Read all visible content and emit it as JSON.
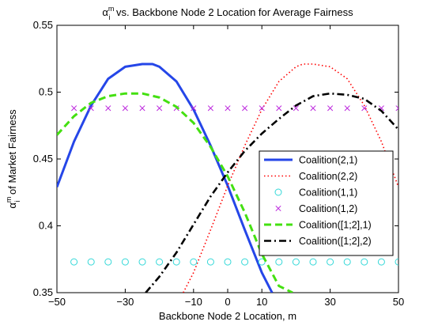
{
  "chart_data": {
    "type": "line",
    "title": {
      "symbol": "α",
      "sup": "m",
      "sub": "i",
      "text": " vs. Backbone Node 2 Location for Average Fairness"
    },
    "xlabel": "Backbone Node 2 Location, m",
    "ylabel": {
      "symbol": "α",
      "sup": "m",
      "sub": "i",
      "text": " of Market Fairness"
    },
    "xlim": [
      -50,
      50
    ],
    "ylim": [
      0.35,
      0.55
    ],
    "xticks": [
      -50,
      -30,
      -10,
      0,
      10,
      30,
      50
    ],
    "xtick_labels": [
      "−50",
      "−30",
      "−10",
      "0",
      "10",
      "30",
      "50"
    ],
    "yticks": [
      0.35,
      0.4,
      0.45,
      0.5,
      0.55
    ],
    "ytick_labels": [
      "0.35",
      "0.4",
      "0.45",
      "0.5",
      "0.55"
    ],
    "grid": false,
    "legend_position": "right-center",
    "series": [
      {
        "name": "Coalition(2,1)",
        "color": "#2546e8",
        "style": "solid",
        "marker": "none",
        "x": [
          -50,
          -45,
          -40,
          -35,
          -30,
          -25,
          -22,
          -20,
          -15,
          -10,
          -5,
          0,
          5,
          10,
          13
        ],
        "y": [
          0.429,
          0.463,
          0.49,
          0.51,
          0.519,
          0.521,
          0.521,
          0.519,
          0.508,
          0.487,
          0.46,
          0.43,
          0.397,
          0.365,
          0.35
        ]
      },
      {
        "name": "Coalition(2,2)",
        "color": "#ff0000",
        "style": "dotted",
        "marker": "none",
        "x": [
          -13,
          -10,
          -5,
          0,
          5,
          10,
          15,
          20,
          22,
          25,
          30,
          35,
          40,
          45,
          50
        ],
        "y": [
          0.35,
          0.365,
          0.397,
          0.43,
          0.46,
          0.487,
          0.508,
          0.519,
          0.521,
          0.521,
          0.519,
          0.51,
          0.49,
          0.463,
          0.429
        ]
      },
      {
        "name": "Coalition(1,1)",
        "color": "#33d8d8",
        "style": "none",
        "marker": "circle",
        "x": [
          -45,
          -40,
          -35,
          -30,
          -25,
          -20,
          -15,
          -10,
          -5,
          0,
          5,
          10,
          15,
          20,
          25,
          30,
          35,
          40,
          45,
          50
        ],
        "y": [
          0.373,
          0.373,
          0.373,
          0.373,
          0.373,
          0.373,
          0.373,
          0.373,
          0.373,
          0.373,
          0.373,
          0.373,
          0.373,
          0.373,
          0.373,
          0.373,
          0.373,
          0.373,
          0.373,
          0.373
        ]
      },
      {
        "name": "Coalition(1,2)",
        "color": "#bb22dd",
        "style": "none",
        "marker": "x",
        "x": [
          -45,
          -40,
          -35,
          -30,
          -25,
          -20,
          -15,
          -10,
          -5,
          0,
          5,
          10,
          15,
          20,
          25,
          30,
          35,
          40,
          45,
          50
        ],
        "y": [
          0.488,
          0.488,
          0.488,
          0.488,
          0.488,
          0.488,
          0.488,
          0.488,
          0.488,
          0.488,
          0.488,
          0.488,
          0.488,
          0.488,
          0.488,
          0.488,
          0.488,
          0.488,
          0.488,
          0.488
        ]
      },
      {
        "name": "Coalition([1;2],1)",
        "color": "#44e011",
        "style": "dashed",
        "marker": "none",
        "x": [
          -50,
          -45,
          -40,
          -35,
          -30,
          -25,
          -20,
          -15,
          -10,
          -5,
          0,
          5,
          10,
          15,
          19
        ],
        "y": [
          0.468,
          0.482,
          0.492,
          0.497,
          0.499,
          0.499,
          0.496,
          0.489,
          0.477,
          0.459,
          0.437,
          0.41,
          0.379,
          0.355,
          0.35
        ]
      },
      {
        "name": "Coalition([1;2],2)",
        "color": "#000000",
        "style": "dashdot",
        "marker": "none",
        "x": [
          -24,
          -20,
          -15,
          -10,
          -5,
          0,
          5,
          10,
          15,
          20,
          25,
          30,
          35,
          40,
          45,
          50
        ],
        "y": [
          0.35,
          0.362,
          0.38,
          0.401,
          0.422,
          0.44,
          0.456,
          0.469,
          0.48,
          0.49,
          0.497,
          0.499,
          0.498,
          0.495,
          0.486,
          0.472
        ]
      }
    ]
  }
}
